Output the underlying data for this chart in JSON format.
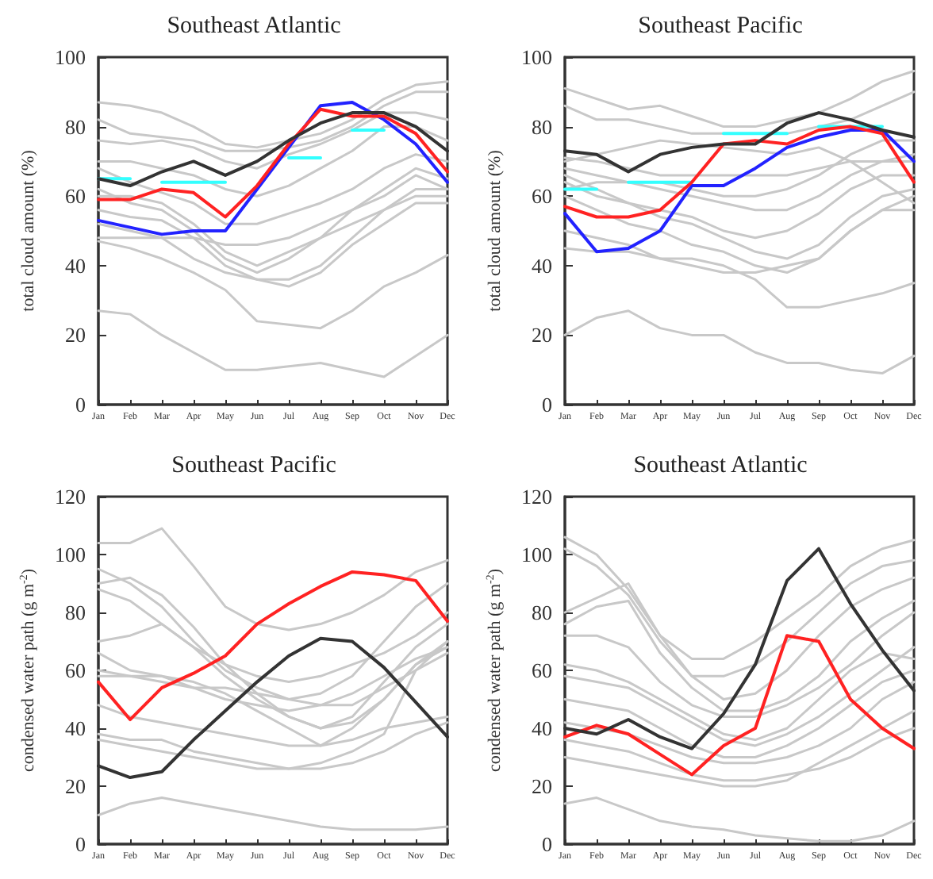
{
  "chart_data": [
    {
      "type": "line",
      "title": "Southeast Atlantic",
      "ylabel": "total cloud amount (%)",
      "categories": [
        "Jan",
        "Feb",
        "Mar",
        "Apr",
        "May",
        "Jun",
        "Jul",
        "Aug",
        "Sep",
        "Oct",
        "Nov",
        "Dec"
      ],
      "ylim": [
        0,
        100
      ],
      "yticks": [
        0,
        20,
        40,
        60,
        80,
        100
      ],
      "grid": false,
      "marker": "none",
      "line_style": "solid",
      "series": [
        {
          "color": "#c8c8c8",
          "values": [
            87,
            86,
            84,
            80,
            75,
            74,
            76,
            78,
            82,
            88,
            92,
            93
          ]
        },
        {
          "color": "#c8c8c8",
          "values": [
            82,
            78,
            77,
            76,
            73,
            73,
            74,
            76,
            80,
            86,
            90,
            90
          ]
        },
        {
          "color": "#c8c8c8",
          "values": [
            76,
            75,
            76,
            74,
            70,
            68,
            72,
            75,
            79,
            84,
            84,
            82
          ]
        },
        {
          "color": "#c8c8c8",
          "values": [
            70,
            70,
            68,
            66,
            62,
            60,
            63,
            68,
            73,
            80,
            80,
            76
          ]
        },
        {
          "color": "#c8c8c8",
          "values": [
            68,
            64,
            61,
            58,
            52,
            52,
            55,
            58,
            62,
            68,
            72,
            70
          ]
        },
        {
          "color": "#c8c8c8",
          "values": [
            62,
            58,
            56,
            50,
            42,
            38,
            42,
            48,
            56,
            62,
            68,
            65
          ]
        },
        {
          "color": "#c8c8c8",
          "values": [
            56,
            54,
            53,
            48,
            40,
            36,
            36,
            40,
            48,
            56,
            62,
            62
          ]
        },
        {
          "color": "#c8c8c8",
          "values": [
            48,
            48,
            48,
            48,
            46,
            46,
            48,
            52,
            56,
            60,
            66,
            62
          ]
        },
        {
          "color": "#c8c8c8",
          "values": [
            52,
            50,
            48,
            42,
            38,
            36,
            34,
            38,
            46,
            52,
            58,
            58
          ]
        },
        {
          "color": "#c8c8c8",
          "values": [
            60,
            60,
            58,
            52,
            44,
            40,
            44,
            48,
            52,
            56,
            60,
            60
          ]
        },
        {
          "color": "#c8c8c8",
          "values": [
            27,
            26,
            20,
            15,
            10,
            10,
            11,
            12,
            10,
            8,
            14,
            20
          ]
        },
        {
          "color": "#c8c8c8",
          "values": [
            47,
            45,
            42,
            38,
            33,
            24,
            23,
            22,
            27,
            34,
            38,
            43
          ]
        },
        {
          "color": "#33ffff",
          "values": [
            65,
            65,
            null,
            null,
            null,
            null,
            null,
            null,
            null,
            null,
            null,
            null
          ]
        },
        {
          "color": "#33ffff",
          "values": [
            null,
            null,
            64,
            64,
            64,
            null,
            null,
            null,
            null,
            null,
            null,
            null
          ]
        },
        {
          "color": "#33ffff",
          "values": [
            null,
            null,
            null,
            null,
            null,
            null,
            71,
            71,
            null,
            null,
            null,
            null
          ]
        },
        {
          "color": "#33ffff",
          "values": [
            null,
            null,
            null,
            null,
            null,
            null,
            null,
            null,
            79,
            79,
            null,
            null
          ]
        },
        {
          "color": "#2222ff",
          "values": [
            53,
            51,
            49,
            50,
            50,
            62,
            74,
            86,
            87,
            82,
            75,
            64
          ]
        },
        {
          "color": "#ff2222",
          "values": [
            59,
            59,
            62,
            61,
            54,
            63,
            75,
            85,
            83,
            83,
            78,
            67
          ]
        },
        {
          "color": "#333333",
          "values": [
            65,
            63,
            67,
            70,
            66,
            70,
            76,
            81,
            84,
            84,
            80,
            73
          ]
        }
      ]
    },
    {
      "type": "line",
      "title": "Southeast Pacific",
      "ylabel": "total cloud amount (%)",
      "categories": [
        "Jan",
        "Feb",
        "Mar",
        "Apr",
        "May",
        "Jun",
        "Jul",
        "Aug",
        "Sep",
        "Oct",
        "Nov",
        "Dec"
      ],
      "ylim": [
        0,
        100
      ],
      "yticks": [
        0,
        20,
        40,
        60,
        80,
        100
      ],
      "grid": false,
      "marker": "none",
      "line_style": "solid",
      "series": [
        {
          "color": "#c8c8c8",
          "values": [
            91,
            88,
            85,
            86,
            83,
            80,
            80,
            82,
            84,
            88,
            93,
            96
          ]
        },
        {
          "color": "#c8c8c8",
          "values": [
            86,
            82,
            82,
            80,
            78,
            78,
            78,
            78,
            80,
            82,
            86,
            90
          ]
        },
        {
          "color": "#c8c8c8",
          "values": [
            71,
            70,
            68,
            66,
            66,
            66,
            66,
            66,
            68,
            70,
            70,
            70
          ]
        },
        {
          "color": "#c8c8c8",
          "values": [
            68,
            66,
            64,
            62,
            60,
            58,
            56,
            56,
            60,
            66,
            70,
            72
          ]
        },
        {
          "color": "#c8c8c8",
          "values": [
            66,
            62,
            58,
            56,
            54,
            50,
            48,
            50,
            55,
            62,
            66,
            66
          ]
        },
        {
          "color": "#c8c8c8",
          "values": [
            64,
            60,
            58,
            54,
            52,
            48,
            44,
            42,
            46,
            54,
            60,
            62
          ]
        },
        {
          "color": "#c8c8c8",
          "values": [
            60,
            56,
            52,
            50,
            46,
            44,
            40,
            38,
            42,
            50,
            56,
            60
          ]
        },
        {
          "color": "#c8c8c8",
          "values": [
            62,
            64,
            64,
            64,
            62,
            60,
            60,
            62,
            66,
            72,
            76,
            76
          ]
        },
        {
          "color": "#c8c8c8",
          "values": [
            45,
            44,
            44,
            42,
            42,
            40,
            36,
            28,
            28,
            30,
            32,
            35
          ]
        },
        {
          "color": "#c8c8c8",
          "values": [
            20,
            25,
            27,
            22,
            20,
            20,
            15,
            12,
            12,
            10,
            9,
            14
          ]
        },
        {
          "color": "#c8c8c8",
          "values": [
            70,
            72,
            74,
            76,
            75,
            74,
            73,
            72,
            74,
            70,
            64,
            58
          ]
        },
        {
          "color": "#c8c8c8",
          "values": [
            50,
            48,
            46,
            42,
            40,
            38,
            38,
            40,
            42,
            50,
            56,
            56
          ]
        },
        {
          "color": "#33ffff",
          "values": [
            62,
            62,
            null,
            null,
            null,
            null,
            null,
            null,
            null,
            null,
            null,
            null
          ]
        },
        {
          "color": "#33ffff",
          "values": [
            null,
            null,
            64,
            64,
            64,
            null,
            null,
            null,
            null,
            null,
            null,
            null
          ]
        },
        {
          "color": "#33ffff",
          "values": [
            null,
            null,
            null,
            null,
            null,
            78,
            78,
            78,
            null,
            null,
            null,
            null
          ]
        },
        {
          "color": "#33ffff",
          "values": [
            null,
            null,
            null,
            null,
            null,
            null,
            null,
            null,
            80,
            80,
            80,
            null
          ]
        },
        {
          "color": "#2222ff",
          "values": [
            55,
            44,
            45,
            50,
            63,
            63,
            68,
            74,
            77,
            79,
            79,
            70
          ]
        },
        {
          "color": "#ff2222",
          "values": [
            57,
            54,
            54,
            56,
            64,
            75,
            76,
            75,
            79,
            80,
            78,
            64
          ]
        },
        {
          "color": "#333333",
          "values": [
            73,
            72,
            67,
            72,
            74,
            75,
            75,
            81,
            84,
            82,
            79,
            77
          ]
        }
      ]
    },
    {
      "type": "line",
      "title": "Southeast Pacific",
      "ylabel": "condensed water path (g m$^{-2}$)",
      "categories": [
        "Jan",
        "Feb",
        "Mar",
        "Apr",
        "May",
        "Jun",
        "Jul",
        "Aug",
        "Sep",
        "Oct",
        "Nov",
        "Dec"
      ],
      "ylim": [
        0,
        120
      ],
      "yticks": [
        0,
        20,
        40,
        60,
        80,
        100,
        120
      ],
      "grid": false,
      "marker": "none",
      "line_style": "solid",
      "series": [
        {
          "color": "#c8c8c8",
          "values": [
            104,
            104,
            109,
            96,
            82,
            76,
            74,
            76,
            80,
            86,
            94,
            98
          ]
        },
        {
          "color": "#c8c8c8",
          "values": [
            95,
            90,
            82,
            70,
            60,
            54,
            50,
            52,
            58,
            70,
            82,
            90
          ]
        },
        {
          "color": "#c8c8c8",
          "values": [
            90,
            92,
            86,
            75,
            62,
            52,
            44,
            40,
            44,
            56,
            68,
            76
          ]
        },
        {
          "color": "#c8c8c8",
          "values": [
            88,
            84,
            76,
            68,
            58,
            50,
            44,
            40,
            42,
            50,
            62,
            70
          ]
        },
        {
          "color": "#c8c8c8",
          "values": [
            70,
            72,
            76,
            68,
            62,
            58,
            56,
            58,
            62,
            66,
            72,
            80
          ]
        },
        {
          "color": "#c8c8c8",
          "values": [
            66,
            60,
            58,
            54,
            50,
            48,
            46,
            48,
            52,
            58,
            64,
            68
          ]
        },
        {
          "color": "#c8c8c8",
          "values": [
            58,
            58,
            58,
            56,
            52,
            46,
            40,
            34,
            40,
            50,
            62,
            68
          ]
        },
        {
          "color": "#c8c8c8",
          "values": [
            48,
            44,
            42,
            40,
            38,
            36,
            34,
            34,
            36,
            40,
            42,
            44
          ]
        },
        {
          "color": "#c8c8c8",
          "values": [
            38,
            36,
            36,
            32,
            30,
            28,
            26,
            26,
            28,
            32,
            38,
            42
          ]
        },
        {
          "color": "#c8c8c8",
          "values": [
            36,
            34,
            32,
            30,
            28,
            26,
            26,
            28,
            32,
            38,
            60,
            70
          ]
        },
        {
          "color": "#c8c8c8",
          "values": [
            10,
            14,
            16,
            14,
            12,
            10,
            8,
            6,
            5,
            5,
            5,
            6
          ]
        },
        {
          "color": "#c8c8c8",
          "values": [
            60,
            58,
            56,
            54,
            54,
            52,
            50,
            48,
            48,
            54,
            60,
            66
          ]
        },
        {
          "color": "#ff2222",
          "values": [
            56,
            43,
            54,
            59,
            65,
            76,
            83,
            89,
            94,
            93,
            91,
            77
          ]
        },
        {
          "color": "#333333",
          "values": [
            27,
            23,
            25,
            36,
            46,
            56,
            65,
            71,
            70,
            61,
            49,
            37
          ]
        }
      ]
    },
    {
      "type": "line",
      "title": "Southeast Atlantic",
      "ylabel": "condensed water path (g m$^{-2}$)",
      "categories": [
        "Jan",
        "Feb",
        "Mar",
        "Apr",
        "May",
        "Jun",
        "Jul",
        "Aug",
        "Sep",
        "Oct",
        "Nov",
        "Dec"
      ],
      "ylim": [
        0,
        120
      ],
      "yticks": [
        0,
        20,
        40,
        60,
        80,
        100,
        120
      ],
      "grid": false,
      "marker": "none",
      "line_style": "solid",
      "series": [
        {
          "color": "#c8c8c8",
          "values": [
            106,
            100,
            88,
            72,
            64,
            64,
            70,
            78,
            86,
            96,
            102,
            105
          ]
        },
        {
          "color": "#c8c8c8",
          "values": [
            102,
            96,
            86,
            70,
            58,
            58,
            62,
            70,
            80,
            90,
            96,
            98
          ]
        },
        {
          "color": "#c8c8c8",
          "values": [
            80,
            85,
            90,
            72,
            58,
            50,
            52,
            60,
            72,
            82,
            88,
            92
          ]
        },
        {
          "color": "#c8c8c8",
          "values": [
            76,
            82,
            84,
            66,
            54,
            46,
            46,
            50,
            58,
            70,
            78,
            84
          ]
        },
        {
          "color": "#c8c8c8",
          "values": [
            72,
            72,
            68,
            56,
            48,
            44,
            44,
            48,
            54,
            62,
            72,
            80
          ]
        },
        {
          "color": "#c8c8c8",
          "values": [
            58,
            56,
            54,
            48,
            42,
            36,
            34,
            38,
            44,
            52,
            60,
            68
          ]
        },
        {
          "color": "#c8c8c8",
          "values": [
            50,
            48,
            46,
            40,
            34,
            30,
            30,
            34,
            40,
            48,
            56,
            60
          ]
        },
        {
          "color": "#c8c8c8",
          "values": [
            42,
            40,
            38,
            34,
            30,
            28,
            28,
            30,
            34,
            40,
            50,
            56
          ]
        },
        {
          "color": "#c8c8c8",
          "values": [
            36,
            34,
            32,
            28,
            24,
            22,
            22,
            24,
            26,
            30,
            36,
            40
          ]
        },
        {
          "color": "#c8c8c8",
          "values": [
            30,
            28,
            26,
            24,
            22,
            20,
            20,
            22,
            28,
            34,
            40,
            46
          ]
        },
        {
          "color": "#c8c8c8",
          "values": [
            14,
            16,
            12,
            8,
            6,
            5,
            3,
            2,
            1,
            1,
            3,
            8
          ]
        },
        {
          "color": "#c8c8c8",
          "values": [
            62,
            60,
            56,
            50,
            44,
            38,
            36,
            40,
            50,
            60,
            66,
            64
          ]
        },
        {
          "color": "#ff2222",
          "values": [
            37,
            41,
            38,
            31,
            24,
            34,
            40,
            72,
            70,
            50,
            40,
            33
          ]
        },
        {
          "color": "#333333",
          "values": [
            40,
            38,
            43,
            37,
            33,
            45,
            62,
            91,
            102,
            83,
            67,
            53
          ]
        }
      ]
    }
  ]
}
